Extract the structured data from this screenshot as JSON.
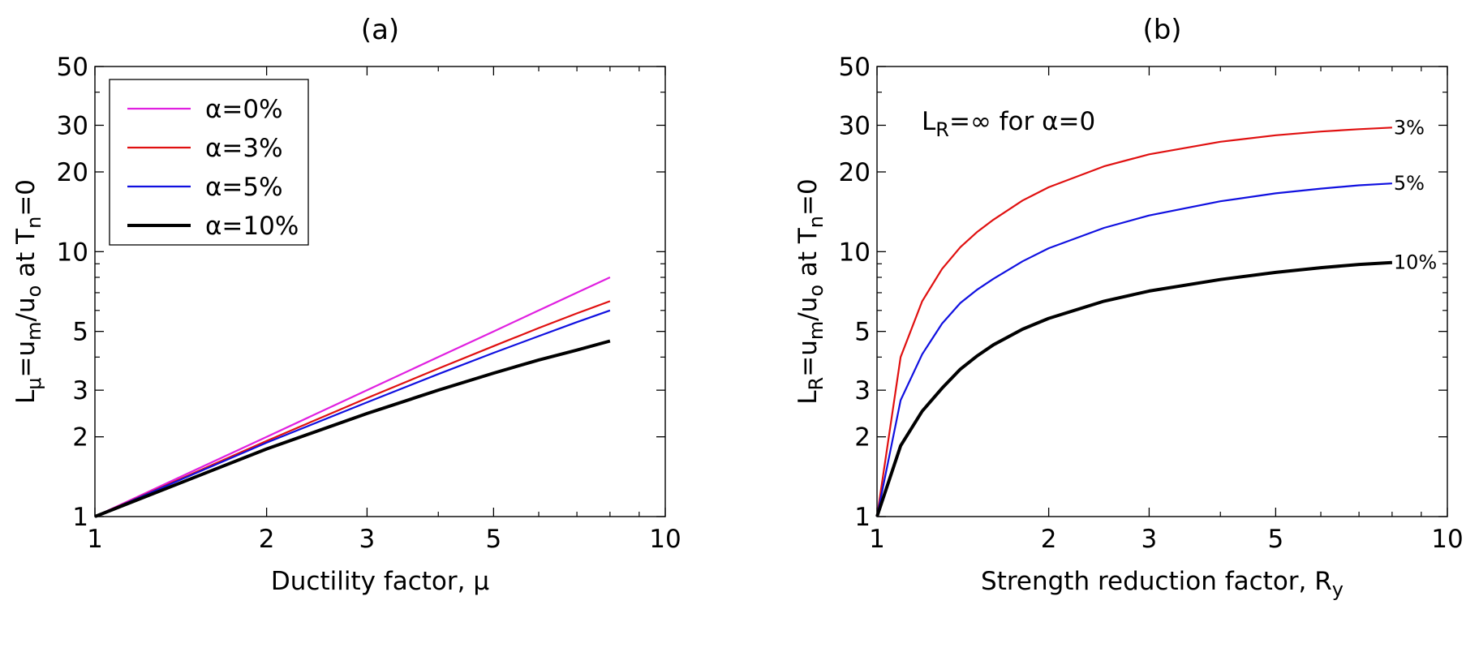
{
  "chart_data": [
    {
      "type": "line",
      "title": "(a)",
      "x_scale": "log",
      "y_scale": "log",
      "xlim": [
        1,
        10
      ],
      "ylim": [
        1,
        50
      ],
      "xticks": [
        1,
        2,
        3,
        5,
        10
      ],
      "xtick_labels": [
        "1",
        "2",
        "3",
        "5",
        "10"
      ],
      "yticks": [
        1,
        2,
        3,
        5,
        10,
        20,
        30,
        50
      ],
      "ytick_labels": [
        "1",
        "2",
        "3",
        "5",
        "10",
        "20",
        "30",
        "50"
      ],
      "xlabel": "Ductility factor, μ",
      "ylabel": {
        "p1": "L",
        "p1_sub": "μ",
        "p2": "=u",
        "p2_sub": "m",
        "p3": "/u",
        "p3_sub": "o",
        "p4": " at T",
        "p4_sub": "n",
        "p5": "=0"
      },
      "grid": false,
      "legend_position": "top-left",
      "series": [
        {
          "name": "α=0%",
          "color": "#e020e0",
          "x": [
            1,
            2,
            3,
            4,
            5,
            6,
            7,
            8
          ],
          "y": [
            1,
            2,
            3,
            4,
            5,
            6,
            7,
            8
          ]
        },
        {
          "name": "α=3%",
          "color": "#e01010",
          "x": [
            1,
            2,
            3,
            4,
            5,
            6,
            7,
            8
          ],
          "y": [
            1,
            1.93,
            2.8,
            3.62,
            4.4,
            5.15,
            5.85,
            6.5
          ]
        },
        {
          "name": "α=5%",
          "color": "#1010e0",
          "x": [
            1,
            2,
            3,
            4,
            5,
            6,
            7,
            8
          ],
          "y": [
            1,
            1.9,
            2.7,
            3.45,
            4.15,
            4.8,
            5.42,
            6.0
          ]
        },
        {
          "name": "α=10%",
          "color": "#000000",
          "x": [
            1,
            2,
            3,
            4,
            5,
            6,
            7,
            8
          ],
          "y": [
            1,
            1.8,
            2.45,
            3.0,
            3.48,
            3.9,
            4.25,
            4.6
          ]
        }
      ]
    },
    {
      "type": "line",
      "title": "(b)",
      "x_scale": "log",
      "y_scale": "log",
      "xlim": [
        1,
        10
      ],
      "ylim": [
        1,
        50
      ],
      "xticks": [
        1,
        2,
        3,
        5,
        10
      ],
      "xtick_labels": [
        "1",
        "2",
        "3",
        "5",
        "10"
      ],
      "yticks": [
        1,
        2,
        3,
        5,
        10,
        20,
        30,
        50
      ],
      "ytick_labels": [
        "1",
        "2",
        "3",
        "5",
        "10",
        "20",
        "30",
        "50"
      ],
      "xlabel": {
        "p1": "Strength reduction factor, R",
        "p1_sub": "y"
      },
      "ylabel": {
        "p1": "L",
        "p1_sub": "R",
        "p2": "=u",
        "p2_sub": "m",
        "p3": "/u",
        "p3_sub": "o",
        "p4": " at T",
        "p4_sub": "n",
        "p5": "=0"
      },
      "annotation": {
        "p1": "L",
        "p1_sub": "R",
        "p2": "=∞ for α=0"
      },
      "grid": false,
      "series": [
        {
          "name": "3%",
          "color": "#e01010",
          "x": [
            1,
            1.1,
            1.2,
            1.3,
            1.4,
            1.5,
            1.6,
            1.8,
            2,
            2.5,
            3,
            4,
            5,
            6,
            7,
            8
          ],
          "y": [
            1,
            4.0,
            6.5,
            8.6,
            10.4,
            11.9,
            13.2,
            15.6,
            17.5,
            21.0,
            23.3,
            26.0,
            27.5,
            28.4,
            29.0,
            29.4
          ]
        },
        {
          "name": "5%",
          "color": "#1010e0",
          "x": [
            1,
            1.1,
            1.2,
            1.3,
            1.4,
            1.5,
            1.6,
            1.8,
            2,
            2.5,
            3,
            4,
            5,
            6,
            7,
            8
          ],
          "y": [
            1,
            2.75,
            4.1,
            5.35,
            6.4,
            7.2,
            7.9,
            9.2,
            10.3,
            12.3,
            13.7,
            15.5,
            16.6,
            17.3,
            17.8,
            18.1
          ]
        },
        {
          "name": "10%",
          "color": "#000000",
          "x": [
            1,
            1.1,
            1.2,
            1.3,
            1.4,
            1.5,
            1.6,
            1.8,
            2,
            2.5,
            3,
            4,
            5,
            6,
            7,
            8
          ],
          "y": [
            1,
            1.85,
            2.5,
            3.05,
            3.6,
            4.05,
            4.45,
            5.1,
            5.6,
            6.5,
            7.1,
            7.85,
            8.35,
            8.7,
            8.95,
            9.1
          ]
        }
      ]
    }
  ]
}
